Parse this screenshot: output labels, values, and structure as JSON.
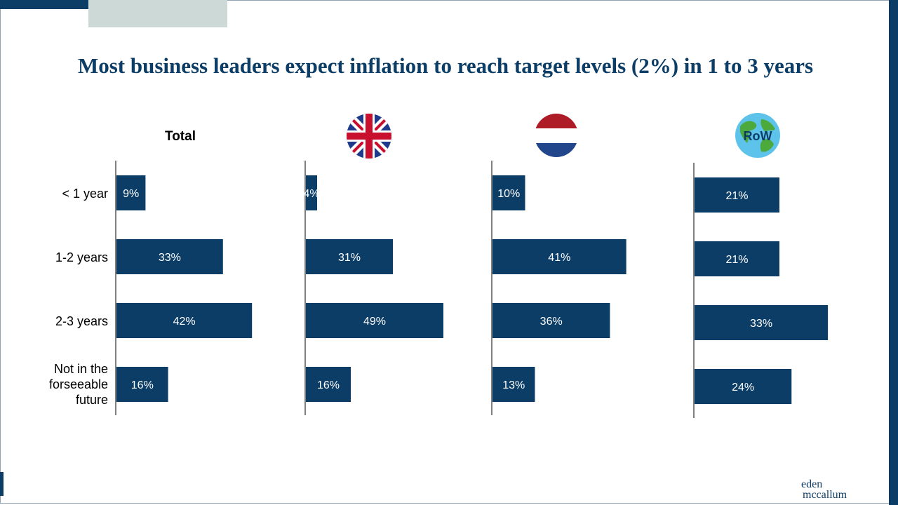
{
  "title": "Most business leaders expect inflation to reach target levels (2%) in 1 to 3 years",
  "panel_title_total": "Total",
  "flag_row_text": "RoW",
  "logo": {
    "line1": "eden",
    "line2": "mccallum"
  },
  "colors": {
    "bar": "#0b3d66",
    "title": "#0b3d66",
    "accent_grey": "#cdd9d6"
  },
  "icons": [
    "uk-flag-icon",
    "netherlands-flag-icon",
    "globe-icon"
  ],
  "chart_data": [
    {
      "type": "bar",
      "orientation": "horizontal",
      "title": "Total",
      "categories": [
        "< 1 year",
        "1-2 years",
        "2-3 years",
        "Not in the forseeable future"
      ],
      "values": [
        9,
        33,
        42,
        16
      ],
      "labels": [
        "9%",
        "33%",
        "42%",
        "16%"
      ]
    },
    {
      "type": "bar",
      "orientation": "horizontal",
      "title": "",
      "categories": [
        "< 1 year",
        "1-2 years",
        "2-3 years",
        "Not in the forseeable future"
      ],
      "values": [
        4,
        31,
        49,
        16
      ],
      "labels": [
        "4%",
        "31%",
        "49%",
        "16%"
      ]
    },
    {
      "type": "bar",
      "orientation": "horizontal",
      "title": "",
      "categories": [
        "< 1 year",
        "1-2 years",
        "2-3 years",
        "Not in the forseeable future"
      ],
      "values": [
        10,
        41,
        36,
        13
      ],
      "labels": [
        "10%",
        "41%",
        "36%",
        "13%"
      ]
    },
    {
      "type": "bar",
      "orientation": "horizontal",
      "title": "RoW",
      "categories": [
        "< 1 year",
        "1-2 years",
        "2-3 years",
        "Not in the forseeable future"
      ],
      "values": [
        21,
        21,
        33,
        24
      ],
      "labels": [
        "21%",
        "21%",
        "33%",
        "24%"
      ]
    }
  ],
  "category_labels": [
    "< 1 year",
    "1-2 years",
    "2-3 years",
    "Not in the\nforseeable\nfuture"
  ]
}
